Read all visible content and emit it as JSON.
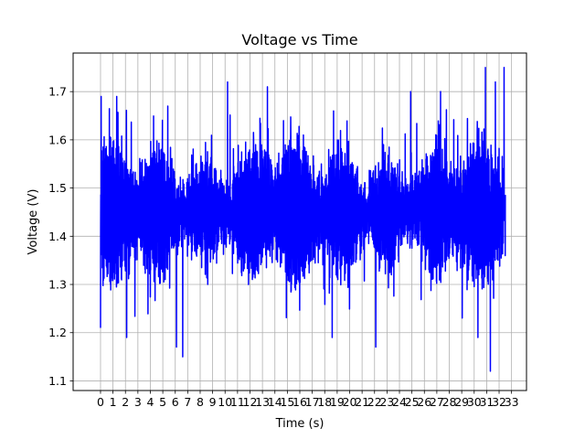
{
  "chart_data": {
    "type": "line",
    "title": "Voltage vs Time",
    "xlabel": "Time (s)",
    "ylabel": "Voltage (V)",
    "xlim": [
      -2.2,
      34.2
    ],
    "ylim": [
      1.08,
      1.78
    ],
    "x_ticks": [
      0,
      1,
      2,
      3,
      4,
      5,
      6,
      7,
      8,
      9,
      10,
      11,
      12,
      13,
      14,
      15,
      16,
      17,
      18,
      19,
      20,
      21,
      22,
      23,
      24,
      25,
      26,
      27,
      28,
      29,
      30,
      31,
      32,
      33
    ],
    "y_ticks": [
      1.1,
      1.2,
      1.3,
      1.4,
      1.5,
      1.6,
      1.7
    ],
    "y_tick_labels": [
      "1.1",
      "1.2",
      "1.3",
      "1.4",
      "1.5",
      "1.6",
      "1.7"
    ],
    "grid": true,
    "series": [
      {
        "color": "#0000ff",
        "x_range": [
          0,
          32.5
        ],
        "sample_step": 0.01,
        "mean": 1.45,
        "approx_range": [
          1.12,
          1.75
        ],
        "notable_extremes": [
          {
            "x": 0.0,
            "y": 1.21
          },
          {
            "x": 0.05,
            "y": 1.69
          },
          {
            "x": 1.3,
            "y": 1.69
          },
          {
            "x": 2.1,
            "y": 1.19
          },
          {
            "x": 5.4,
            "y": 1.67
          },
          {
            "x": 6.1,
            "y": 1.17
          },
          {
            "x": 6.6,
            "y": 1.15
          },
          {
            "x": 10.2,
            "y": 1.72
          },
          {
            "x": 13.4,
            "y": 1.71
          },
          {
            "x": 18.6,
            "y": 1.19
          },
          {
            "x": 22.1,
            "y": 1.17
          },
          {
            "x": 24.9,
            "y": 1.7
          },
          {
            "x": 27.3,
            "y": 1.7
          },
          {
            "x": 30.3,
            "y": 1.19
          },
          {
            "x": 30.9,
            "y": 1.75
          },
          {
            "x": 31.3,
            "y": 1.12
          },
          {
            "x": 31.7,
            "y": 1.72
          },
          {
            "x": 32.4,
            "y": 1.75
          }
        ]
      }
    ]
  }
}
